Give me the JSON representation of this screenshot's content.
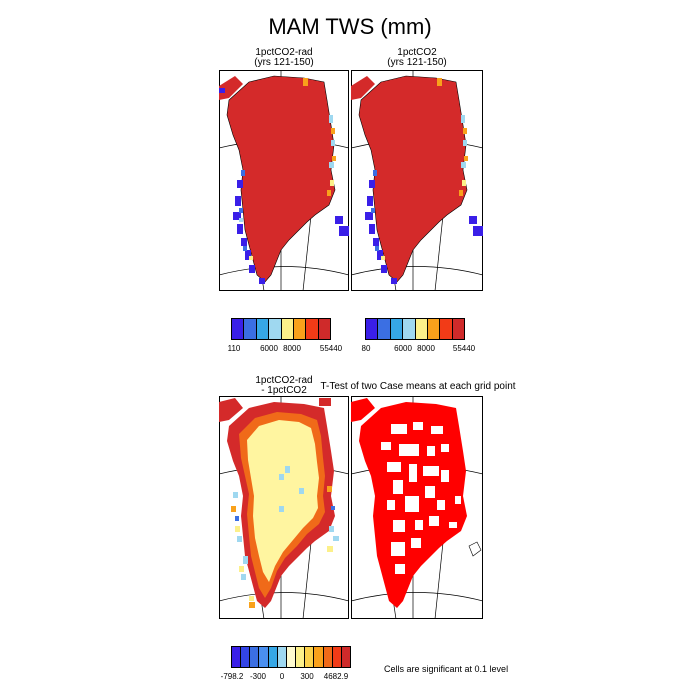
{
  "figure": {
    "title": "MAM TWS (mm)"
  },
  "panels": {
    "top_left": {
      "title_line1": "1pctCO2-rad",
      "title_line2": "(yrs 121-150)"
    },
    "top_right": {
      "title_line1": "1pctCO2",
      "title_line2": "(yrs 121-150)"
    },
    "bottom_left": {
      "title_line1": "1pctCO2-rad",
      "title_line2": "- 1pctCO2"
    },
    "bottom_right": {
      "title": "T-Test of two Case means at each grid point"
    }
  },
  "colorbars": {
    "top_left": {
      "colors": [
        "#3a1fe8",
        "#3b6fe3",
        "#36a7e6",
        "#9fd8f0",
        "#fcf08a",
        "#f9a11b",
        "#f23b17",
        "#cf2a2a"
      ],
      "labels": [
        "110",
        "6000",
        "8000",
        "55440"
      ]
    },
    "top_right": {
      "colors": [
        "#3a1fe8",
        "#3b6fe3",
        "#36a7e6",
        "#9fd8f0",
        "#fcf08a",
        "#f9a11b",
        "#f23b17",
        "#cf2a2a"
      ],
      "labels": [
        "80",
        "6000",
        "8000",
        "55440"
      ]
    },
    "bottom": {
      "colors": [
        "#3a1fe8",
        "#3344e6",
        "#3b6fe3",
        "#4a8ff0",
        "#36a7e6",
        "#9fd8f0",
        "#fffbd0",
        "#fcf08a",
        "#fbd14b",
        "#f9a11b",
        "#f06a19",
        "#f23b17",
        "#cf2a2a"
      ],
      "labels": [
        "-798.2",
        "-300",
        "0",
        "300",
        "4682.9"
      ]
    }
  },
  "notes": {
    "significance": "Cells are significant at 0.1 level"
  },
  "palette": {
    "red": "#d42a2a",
    "sig_red": "#ff0000",
    "blue": "#3a1fe8",
    "lightblue": "#9fd8f0",
    "yellow": "#fff5a0",
    "orange": "#f9a11b"
  }
}
